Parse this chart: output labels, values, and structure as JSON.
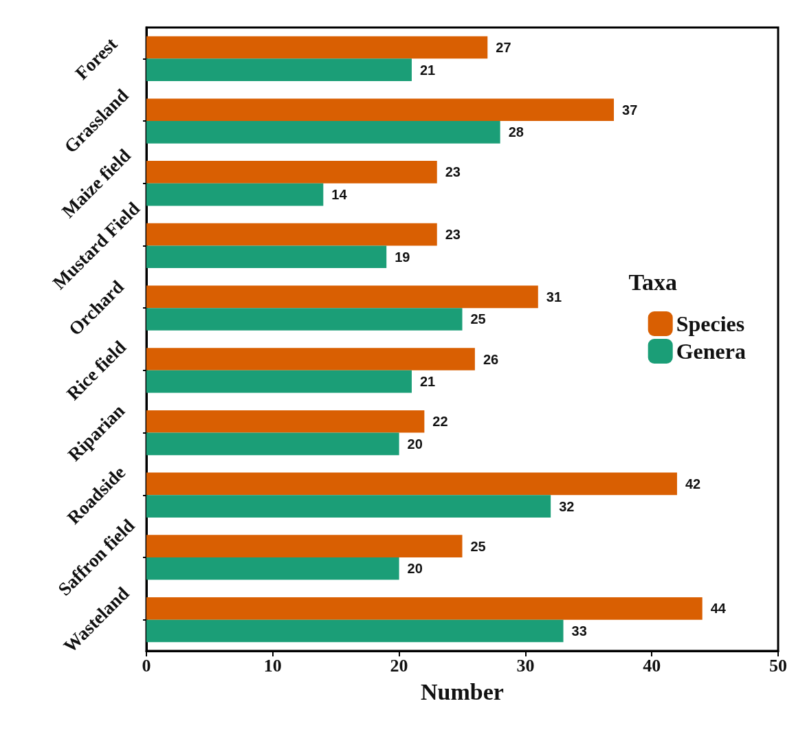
{
  "chart_data": {
    "type": "bar",
    "orientation": "horizontal",
    "xlabel": "Number",
    "legend_title": "Taxa",
    "legend": "right",
    "categories": [
      "Forest",
      "Grassland",
      "Maize field",
      "Mustard Field",
      "Orchard",
      "Rice field",
      "Riparian",
      "Roadside",
      "Saffron field",
      "Wasteland"
    ],
    "series": [
      {
        "name": "Species",
        "color": "#d95f02",
        "values": [
          27,
          37,
          23,
          23,
          31,
          26,
          22,
          42,
          25,
          44
        ]
      },
      {
        "name": "Genera",
        "color": "#1b9e77",
        "values": [
          21,
          28,
          14,
          19,
          25,
          21,
          20,
          32,
          20,
          33
        ]
      }
    ],
    "xlim": [
      0,
      50
    ],
    "xticks": [
      0,
      10,
      20,
      30,
      40,
      50
    ],
    "data_labels": true,
    "grid": false
  }
}
